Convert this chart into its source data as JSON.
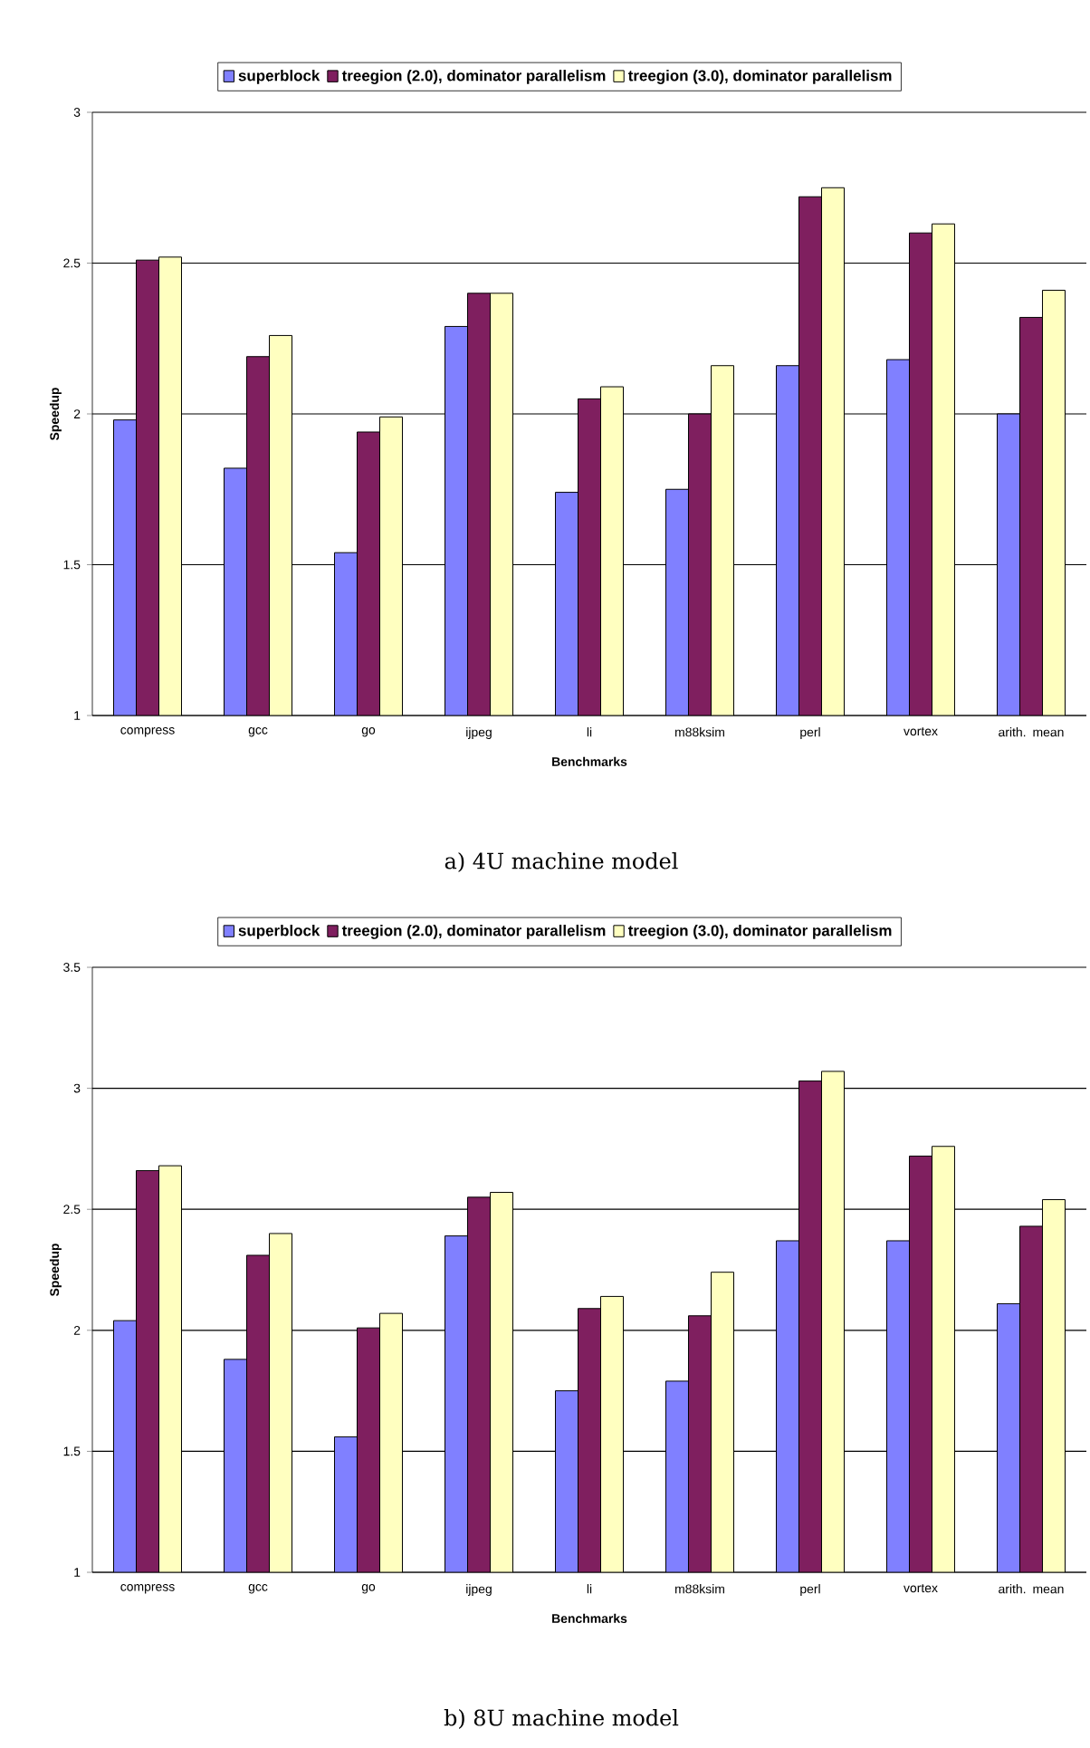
{
  "chart_data": [
    {
      "type": "bar",
      "xlabel": "Benchmarks",
      "ylabel": "Speedup",
      "categories": [
        "compress",
        "gcc",
        "go",
        "ijpeg",
        "li",
        "m88ksim",
        "perl",
        "vortex",
        "arith. mean"
      ],
      "series": [
        {
          "name": "superblock",
          "color": "#8080ff",
          "values": [
            1.98,
            1.82,
            1.54,
            2.29,
            1.74,
            1.75,
            2.16,
            2.18,
            2.0
          ]
        },
        {
          "name": "treegion (2.0), dominator parallelism",
          "color": "#7f1f5f",
          "values": [
            2.51,
            2.19,
            1.94,
            2.4,
            2.05,
            2.0,
            2.72,
            2.6,
            2.32
          ]
        },
        {
          "name": "treegion (3.0), dominator parallelism",
          "color": "#ffffc0",
          "values": [
            2.52,
            2.26,
            1.99,
            2.4,
            2.09,
            2.16,
            2.75,
            2.63,
            2.41
          ]
        }
      ],
      "ylim": [
        1,
        3
      ],
      "yticks": [
        1,
        1.5,
        2,
        2.5,
        3
      ],
      "grid": "y",
      "legend": "top",
      "annotations": [
        "a) 4U machine model"
      ]
    },
    {
      "type": "bar",
      "xlabel": "Benchmarks",
      "ylabel": "Speedup",
      "categories": [
        "compress",
        "gcc",
        "go",
        "ijpeg",
        "li",
        "m88ksim",
        "perl",
        "vortex",
        "arith. mean"
      ],
      "series": [
        {
          "name": "superblock",
          "color": "#8080ff",
          "values": [
            2.04,
            1.88,
            1.56,
            2.39,
            1.75,
            1.79,
            2.37,
            2.37,
            2.11
          ]
        },
        {
          "name": "treegion (2.0), dominator parallelism",
          "color": "#7f1f5f",
          "values": [
            2.66,
            2.31,
            2.01,
            2.55,
            2.09,
            2.06,
            3.03,
            2.72,
            2.43
          ]
        },
        {
          "name": "treegion (3.0), dominator parallelism",
          "color": "#ffffc0",
          "values": [
            2.68,
            2.4,
            2.07,
            2.57,
            2.14,
            2.24,
            3.07,
            2.76,
            2.54
          ]
        }
      ],
      "ylim": [
        1,
        3.5
      ],
      "yticks": [
        1,
        1.5,
        2,
        2.5,
        3,
        3.5
      ],
      "grid": "y",
      "legend": "top",
      "annotations": [
        "b) 8U machine model"
      ]
    }
  ]
}
